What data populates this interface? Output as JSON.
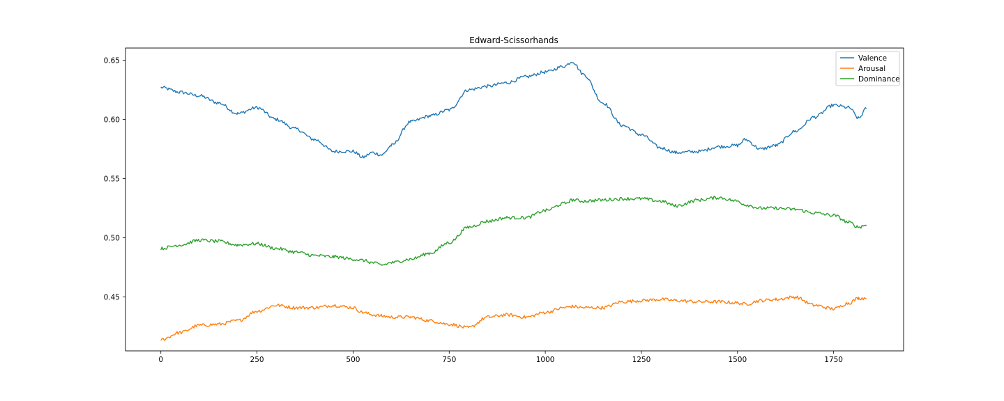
{
  "chart_data": {
    "type": "line",
    "title": "Edward-Scissorhands",
    "xlabel": "",
    "ylabel": "",
    "xlim": [
      -92,
      1932
    ],
    "ylim": [
      0.4045,
      0.6603
    ],
    "xticks": [
      0,
      250,
      500,
      750,
      1000,
      1250,
      1500,
      1750
    ],
    "yticks": [
      0.45,
      0.5,
      0.55,
      0.6,
      0.65
    ],
    "xtick_labels": [
      "0",
      "250",
      "500",
      "750",
      "1000",
      "1250",
      "1500",
      "1750"
    ],
    "ytick_labels": [
      "0.45",
      "0.50",
      "0.55",
      "0.60",
      "0.65"
    ],
    "grid": false,
    "legend_position": "top-right",
    "x": [
      0,
      50,
      100,
      150,
      200,
      250,
      300,
      350,
      400,
      450,
      500,
      525,
      550,
      575,
      600,
      650,
      700,
      750,
      800,
      850,
      900,
      950,
      1000,
      1050,
      1070,
      1100,
      1150,
      1200,
      1250,
      1300,
      1340,
      1400,
      1450,
      1500,
      1520,
      1560,
      1600,
      1650,
      1700,
      1750,
      1790,
      1815,
      1835
    ],
    "series": [
      {
        "name": "Valence",
        "color": "#1f77b4",
        "values": [
          0.627,
          0.623,
          0.62,
          0.614,
          0.605,
          0.61,
          0.6,
          0.592,
          0.583,
          0.573,
          0.573,
          0.568,
          0.572,
          0.57,
          0.578,
          0.598,
          0.603,
          0.608,
          0.625,
          0.628,
          0.631,
          0.636,
          0.64,
          0.645,
          0.649,
          0.638,
          0.614,
          0.595,
          0.587,
          0.576,
          0.572,
          0.573,
          0.577,
          0.578,
          0.583,
          0.575,
          0.578,
          0.59,
          0.602,
          0.612,
          0.61,
          0.601,
          0.609
        ]
      },
      {
        "name": "Arousal",
        "color": "#ff7f0e",
        "values": [
          0.414,
          0.42,
          0.426,
          0.427,
          0.43,
          0.438,
          0.443,
          0.441,
          0.441,
          0.443,
          0.441,
          0.437,
          0.435,
          0.434,
          0.433,
          0.433,
          0.43,
          0.427,
          0.424,
          0.433,
          0.435,
          0.433,
          0.437,
          0.441,
          0.442,
          0.441,
          0.441,
          0.446,
          0.447,
          0.448,
          0.447,
          0.446,
          0.446,
          0.445,
          0.444,
          0.447,
          0.448,
          0.45,
          0.443,
          0.44,
          0.445,
          0.449,
          0.449
        ]
      },
      {
        "name": "Dominance",
        "color": "#2ca02c",
        "values": [
          0.491,
          0.494,
          0.498,
          0.497,
          0.494,
          0.495,
          0.491,
          0.488,
          0.485,
          0.484,
          0.482,
          0.481,
          0.479,
          0.477,
          0.479,
          0.482,
          0.487,
          0.496,
          0.509,
          0.514,
          0.517,
          0.517,
          0.523,
          0.529,
          0.532,
          0.531,
          0.532,
          0.533,
          0.533,
          0.531,
          0.527,
          0.532,
          0.534,
          0.531,
          0.528,
          0.525,
          0.525,
          0.524,
          0.521,
          0.519,
          0.513,
          0.509,
          0.511
        ]
      }
    ]
  }
}
